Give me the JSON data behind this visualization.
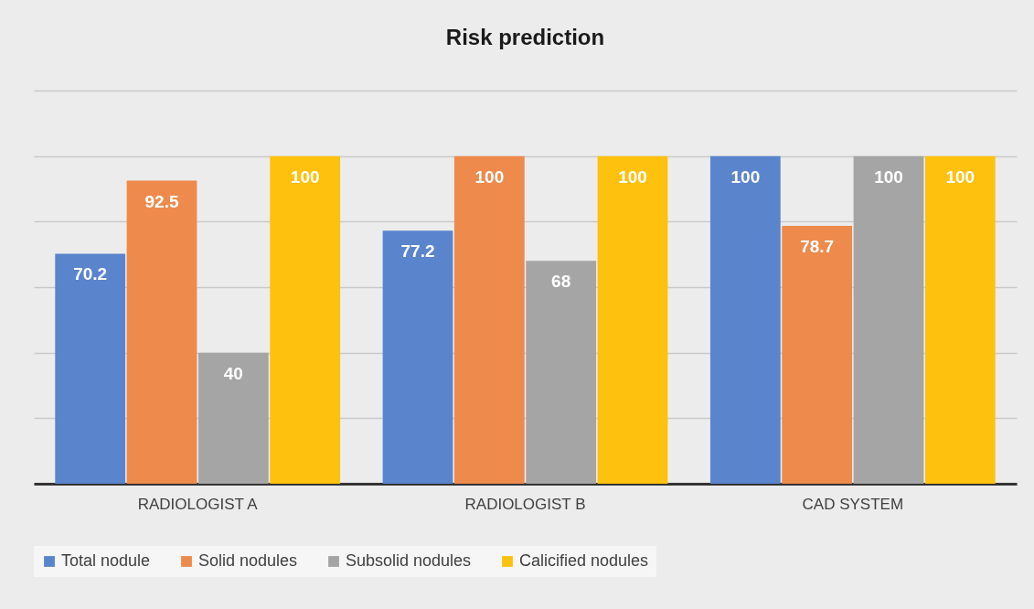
{
  "chart_data": {
    "type": "bar",
    "title": "Risk prediction",
    "categories": [
      "RADIOLOGIST A",
      "RADIOLOGIST B",
      "CAD SYSTEM"
    ],
    "series": [
      {
        "name": "Total nodule",
        "color": "#5a84cc",
        "values": [
          70.2,
          77.2,
          100
        ]
      },
      {
        "name": "Solid nodules",
        "color": "#ed8a4c",
        "values": [
          92.5,
          100,
          78.7
        ]
      },
      {
        "name": "Subsolid nodules",
        "color": "#a5a5a5",
        "values": [
          40,
          68,
          100
        ]
      },
      {
        "name": "Calicified nodules",
        "color": "#fdc10e",
        "values": [
          100,
          100,
          100
        ]
      }
    ],
    "ylim": [
      0,
      120
    ],
    "yticks": [
      {
        "value": 0,
        "label": null
      },
      {
        "value": 20,
        "label": null
      },
      {
        "value": 40,
        "label": null
      },
      {
        "value": 60,
        "label": null
      },
      {
        "value": 80,
        "label": null
      },
      {
        "value": 100,
        "label": null
      },
      {
        "value": 120,
        "label": null
      }
    ],
    "tick_labels": "x",
    "grid": "y",
    "legend": "bottom",
    "data_labels": true
  }
}
